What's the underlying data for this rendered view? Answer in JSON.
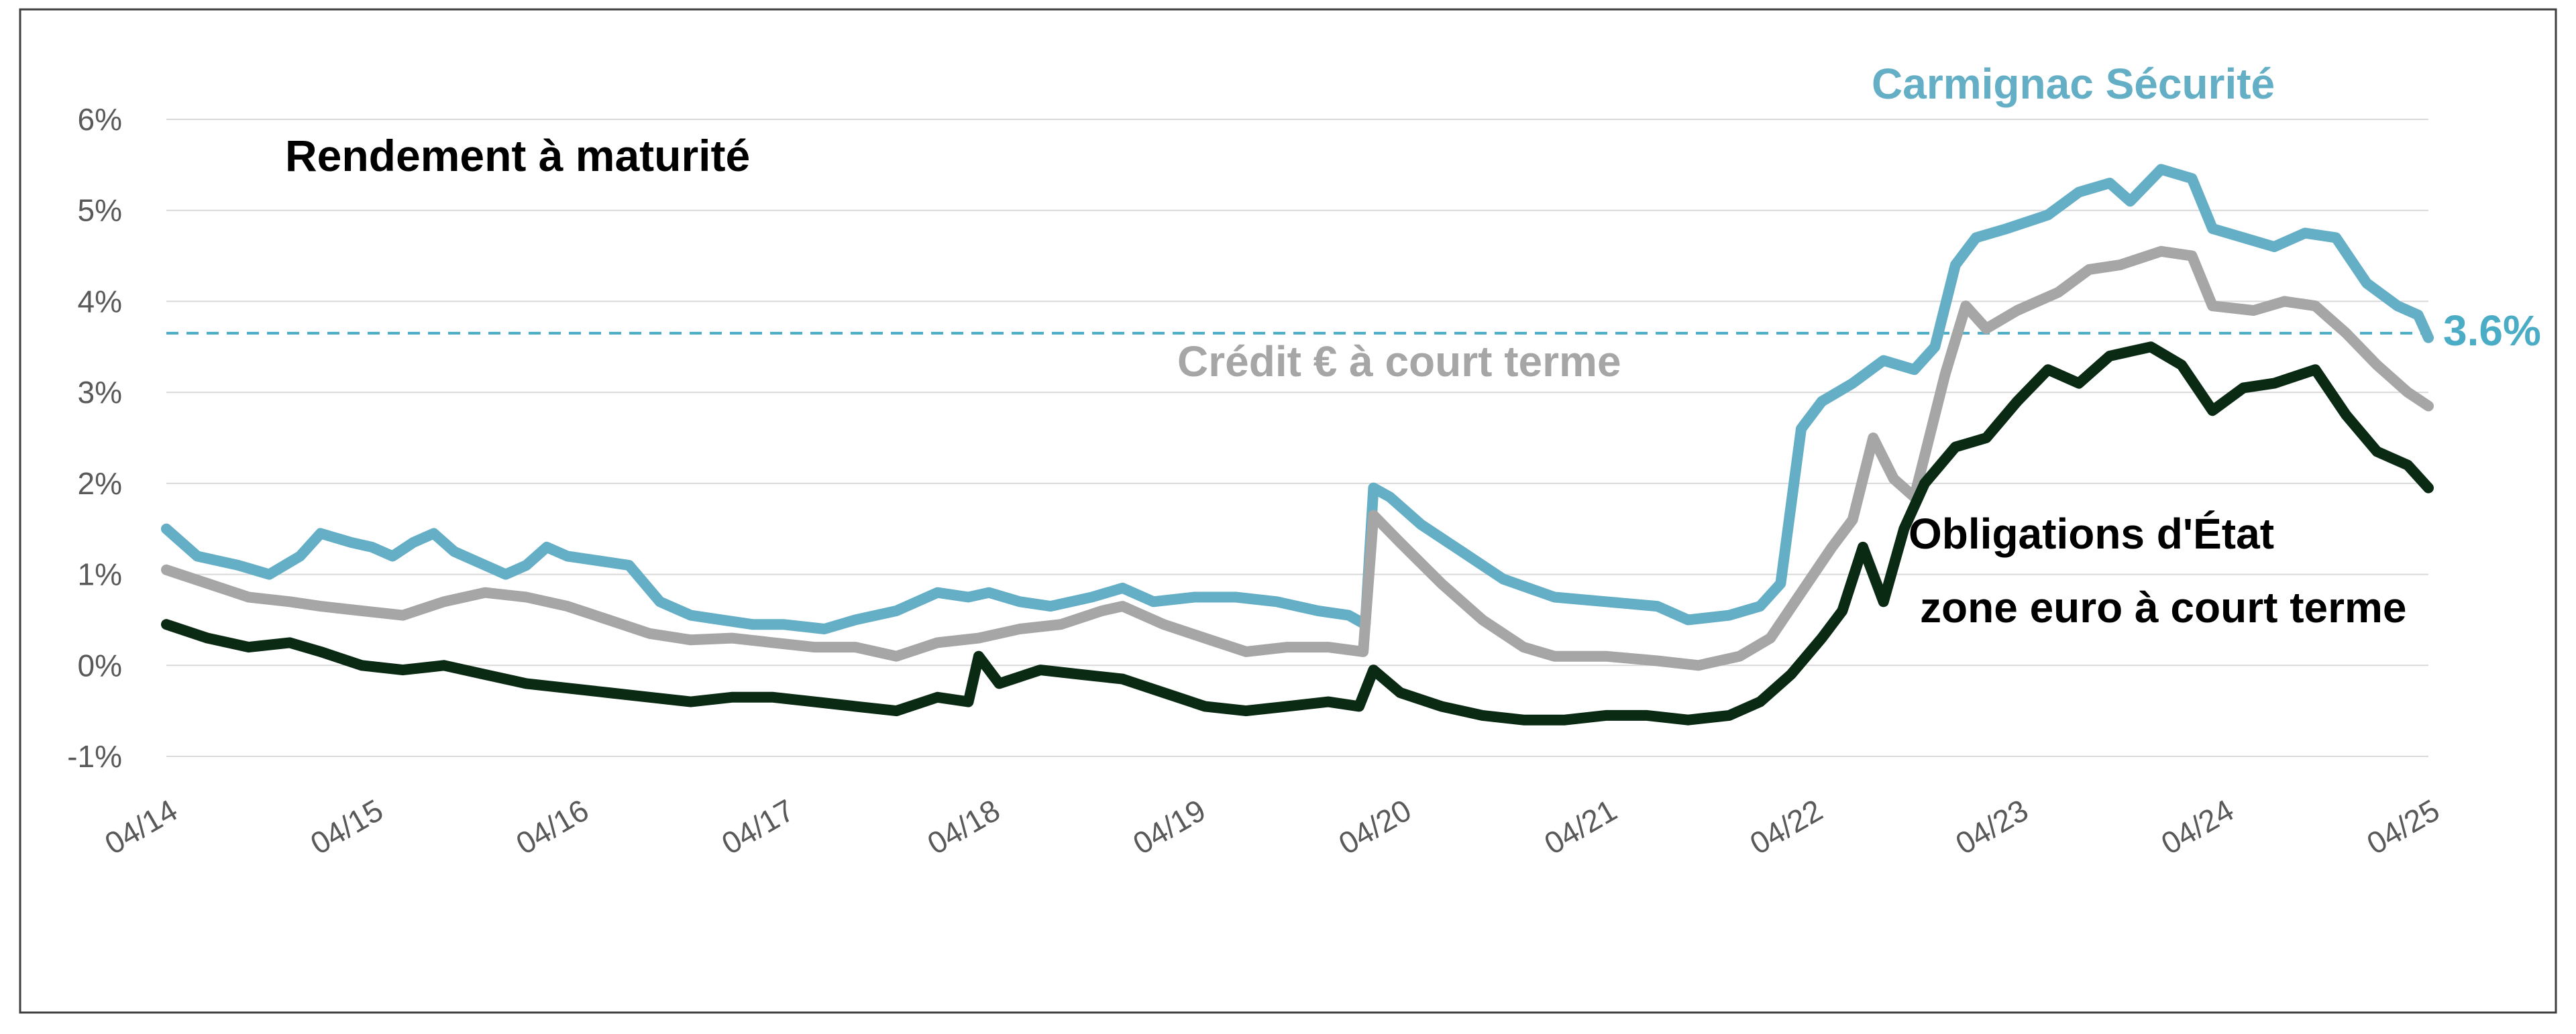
{
  "chart_data": {
    "type": "line",
    "title": "Rendement à maturité",
    "xlabel": "",
    "ylabel": "",
    "x_ticks": [
      "04/14",
      "04/15",
      "04/16",
      "04/17",
      "04/18",
      "04/19",
      "04/20",
      "04/21",
      "04/22",
      "04/23",
      "04/24",
      "04/25"
    ],
    "y_ticks": [
      "6%",
      "5%",
      "4%",
      "3%",
      "2%",
      "1%",
      "0%",
      "-1%"
    ],
    "ylim": [
      -1,
      6
    ],
    "xlim": [
      2014.25,
      2025.25
    ],
    "grid": true,
    "legend": "none",
    "reference_line": {
      "value": 3.65,
      "label": "3.6%",
      "style": "dashed",
      "color": "#4BACC6"
    },
    "series": [
      {
        "name": "Carmignac Sécurité",
        "color": "#64AFC6",
        "points": [
          [
            2014.25,
            1.5
          ],
          [
            2014.4,
            1.2
          ],
          [
            2014.6,
            1.1
          ],
          [
            2014.75,
            1.0
          ],
          [
            2014.9,
            1.2
          ],
          [
            2015.0,
            1.45
          ],
          [
            2015.15,
            1.35
          ],
          [
            2015.25,
            1.3
          ],
          [
            2015.35,
            1.2
          ],
          [
            2015.45,
            1.35
          ],
          [
            2015.55,
            1.45
          ],
          [
            2015.65,
            1.25
          ],
          [
            2015.75,
            1.15
          ],
          [
            2015.9,
            1.0
          ],
          [
            2016.0,
            1.1
          ],
          [
            2016.1,
            1.3
          ],
          [
            2016.2,
            1.2
          ],
          [
            2016.35,
            1.15
          ],
          [
            2016.5,
            1.1
          ],
          [
            2016.65,
            0.7
          ],
          [
            2016.8,
            0.55
          ],
          [
            2016.95,
            0.5
          ],
          [
            2017.1,
            0.45
          ],
          [
            2017.25,
            0.45
          ],
          [
            2017.45,
            0.4
          ],
          [
            2017.6,
            0.5
          ],
          [
            2017.8,
            0.6
          ],
          [
            2018.0,
            0.8
          ],
          [
            2018.15,
            0.75
          ],
          [
            2018.25,
            0.8
          ],
          [
            2018.4,
            0.7
          ],
          [
            2018.55,
            0.65
          ],
          [
            2018.75,
            0.75
          ],
          [
            2018.9,
            0.85
          ],
          [
            2019.05,
            0.7
          ],
          [
            2019.25,
            0.75
          ],
          [
            2019.45,
            0.75
          ],
          [
            2019.65,
            0.7
          ],
          [
            2019.85,
            0.6
          ],
          [
            2020.0,
            0.55
          ],
          [
            2020.08,
            0.45
          ],
          [
            2020.12,
            1.95
          ],
          [
            2020.2,
            1.85
          ],
          [
            2020.35,
            1.55
          ],
          [
            2020.55,
            1.25
          ],
          [
            2020.75,
            0.95
          ],
          [
            2021.0,
            0.75
          ],
          [
            2021.25,
            0.7
          ],
          [
            2021.5,
            0.65
          ],
          [
            2021.65,
            0.5
          ],
          [
            2021.85,
            0.55
          ],
          [
            2022.0,
            0.65
          ],
          [
            2022.1,
            0.9
          ],
          [
            2022.2,
            2.6
          ],
          [
            2022.3,
            2.9
          ],
          [
            2022.45,
            3.1
          ],
          [
            2022.6,
            3.35
          ],
          [
            2022.75,
            3.25
          ],
          [
            2022.85,
            3.5
          ],
          [
            2022.95,
            4.4
          ],
          [
            2023.05,
            4.7
          ],
          [
            2023.2,
            4.8
          ],
          [
            2023.4,
            4.95
          ],
          [
            2023.55,
            5.2
          ],
          [
            2023.7,
            5.3
          ],
          [
            2023.8,
            5.1
          ],
          [
            2023.95,
            5.45
          ],
          [
            2024.1,
            5.35
          ],
          [
            2024.2,
            4.8
          ],
          [
            2024.35,
            4.7
          ],
          [
            2024.5,
            4.6
          ],
          [
            2024.65,
            4.75
          ],
          [
            2024.8,
            4.7
          ],
          [
            2024.95,
            4.2
          ],
          [
            2025.1,
            3.95
          ],
          [
            2025.2,
            3.85
          ],
          [
            2025.25,
            3.6
          ]
        ]
      },
      {
        "name": "Crédit € à court terme",
        "color": "#A6A6A6",
        "points": [
          [
            2014.25,
            1.05
          ],
          [
            2014.45,
            0.9
          ],
          [
            2014.65,
            0.75
          ],
          [
            2014.85,
            0.7
          ],
          [
            2015.0,
            0.65
          ],
          [
            2015.2,
            0.6
          ],
          [
            2015.4,
            0.55
          ],
          [
            2015.6,
            0.7
          ],
          [
            2015.8,
            0.8
          ],
          [
            2016.0,
            0.75
          ],
          [
            2016.2,
            0.65
          ],
          [
            2016.4,
            0.5
          ],
          [
            2016.6,
            0.35
          ],
          [
            2016.8,
            0.28
          ],
          [
            2017.0,
            0.3
          ],
          [
            2017.2,
            0.25
          ],
          [
            2017.4,
            0.2
          ],
          [
            2017.6,
            0.2
          ],
          [
            2017.8,
            0.1
          ],
          [
            2018.0,
            0.25
          ],
          [
            2018.2,
            0.3
          ],
          [
            2018.4,
            0.4
          ],
          [
            2018.6,
            0.45
          ],
          [
            2018.8,
            0.6
          ],
          [
            2018.9,
            0.65
          ],
          [
            2019.1,
            0.45
          ],
          [
            2019.3,
            0.3
          ],
          [
            2019.5,
            0.15
          ],
          [
            2019.7,
            0.2
          ],
          [
            2019.9,
            0.2
          ],
          [
            2020.07,
            0.15
          ],
          [
            2020.12,
            1.65
          ],
          [
            2020.25,
            1.35
          ],
          [
            2020.45,
            0.9
          ],
          [
            2020.65,
            0.5
          ],
          [
            2020.85,
            0.2
          ],
          [
            2021.0,
            0.1
          ],
          [
            2021.25,
            0.1
          ],
          [
            2021.5,
            0.05
          ],
          [
            2021.7,
            0.0
          ],
          [
            2021.9,
            0.1
          ],
          [
            2022.05,
            0.3
          ],
          [
            2022.2,
            0.8
          ],
          [
            2022.35,
            1.3
          ],
          [
            2022.45,
            1.6
          ],
          [
            2022.55,
            2.5
          ],
          [
            2022.65,
            2.05
          ],
          [
            2022.75,
            1.85
          ],
          [
            2022.9,
            3.2
          ],
          [
            2023.0,
            3.95
          ],
          [
            2023.1,
            3.7
          ],
          [
            2023.25,
            3.9
          ],
          [
            2023.45,
            4.1
          ],
          [
            2023.6,
            4.35
          ],
          [
            2023.75,
            4.4
          ],
          [
            2023.95,
            4.55
          ],
          [
            2024.1,
            4.5
          ],
          [
            2024.2,
            3.95
          ],
          [
            2024.4,
            3.9
          ],
          [
            2024.55,
            4.0
          ],
          [
            2024.7,
            3.95
          ],
          [
            2024.85,
            3.65
          ],
          [
            2025.0,
            3.3
          ],
          [
            2025.15,
            3.0
          ],
          [
            2025.25,
            2.85
          ]
        ]
      },
      {
        "name": "Obligations d'État zone euro à court terme",
        "color": "#0A2A14",
        "points": [
          [
            2014.25,
            0.45
          ],
          [
            2014.45,
            0.3
          ],
          [
            2014.65,
            0.2
          ],
          [
            2014.85,
            0.25
          ],
          [
            2015.0,
            0.15
          ],
          [
            2015.2,
            0.0
          ],
          [
            2015.4,
            -0.05
          ],
          [
            2015.6,
            0.0
          ],
          [
            2015.8,
            -0.1
          ],
          [
            2016.0,
            -0.2
          ],
          [
            2016.2,
            -0.25
          ],
          [
            2016.4,
            -0.3
          ],
          [
            2016.6,
            -0.35
          ],
          [
            2016.8,
            -0.4
          ],
          [
            2017.0,
            -0.35
          ],
          [
            2017.2,
            -0.35
          ],
          [
            2017.4,
            -0.4
          ],
          [
            2017.6,
            -0.45
          ],
          [
            2017.8,
            -0.5
          ],
          [
            2018.0,
            -0.35
          ],
          [
            2018.15,
            -0.4
          ],
          [
            2018.2,
            0.1
          ],
          [
            2018.3,
            -0.2
          ],
          [
            2018.5,
            -0.05
          ],
          [
            2018.7,
            -0.1
          ],
          [
            2018.9,
            -0.15
          ],
          [
            2019.1,
            -0.3
          ],
          [
            2019.3,
            -0.45
          ],
          [
            2019.5,
            -0.5
          ],
          [
            2019.7,
            -0.45
          ],
          [
            2019.9,
            -0.4
          ],
          [
            2020.05,
            -0.45
          ],
          [
            2020.12,
            -0.05
          ],
          [
            2020.25,
            -0.3
          ],
          [
            2020.45,
            -0.45
          ],
          [
            2020.65,
            -0.55
          ],
          [
            2020.85,
            -0.6
          ],
          [
            2021.05,
            -0.6
          ],
          [
            2021.25,
            -0.55
          ],
          [
            2021.45,
            -0.55
          ],
          [
            2021.65,
            -0.6
          ],
          [
            2021.85,
            -0.55
          ],
          [
            2022.0,
            -0.4
          ],
          [
            2022.15,
            -0.1
          ],
          [
            2022.3,
            0.3
          ],
          [
            2022.4,
            0.6
          ],
          [
            2022.5,
            1.3
          ],
          [
            2022.6,
            0.7
          ],
          [
            2022.7,
            1.5
          ],
          [
            2022.8,
            2.0
          ],
          [
            2022.95,
            2.4
          ],
          [
            2023.1,
            2.5
          ],
          [
            2023.25,
            2.9
          ],
          [
            2023.4,
            3.25
          ],
          [
            2023.55,
            3.1
          ],
          [
            2023.7,
            3.4
          ],
          [
            2023.9,
            3.5
          ],
          [
            2024.05,
            3.3
          ],
          [
            2024.2,
            2.8
          ],
          [
            2024.35,
            3.05
          ],
          [
            2024.5,
            3.1
          ],
          [
            2024.7,
            3.25
          ],
          [
            2024.85,
            2.75
          ],
          [
            2025.0,
            2.35
          ],
          [
            2025.15,
            2.2
          ],
          [
            2025.25,
            1.95
          ]
        ]
      }
    ],
    "labels": {
      "carmignac": "Carmignac Sécurité",
      "credit": "Crédit € à court terme",
      "obligations_line1": "Obligations d'État",
      "obligations_line2": "zone euro à court terme"
    }
  }
}
